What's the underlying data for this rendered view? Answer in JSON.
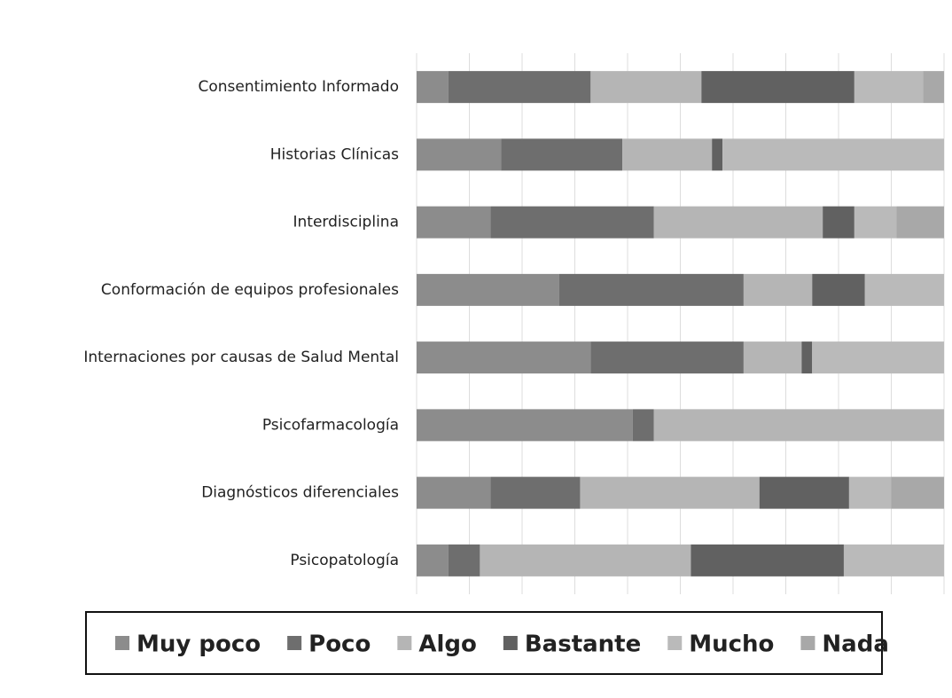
{
  "chart_data": {
    "type": "stacked_barh",
    "categories": [
      "Consentimiento Informado",
      "Historias Clínicas",
      "Interdisciplina",
      "Conformación de equipos profesionales",
      "Internaciones por causas de Salud Mental",
      "Psicofarmacología",
      "Diagnósticos diferenciales",
      "Psicopatología"
    ],
    "series": [
      {
        "name": "Muy poco",
        "color": "#8c8c8c",
        "values": [
          6,
          16,
          14,
          27,
          33,
          41,
          14,
          6
        ]
      },
      {
        "name": "Poco",
        "color": "#6e6e6e",
        "values": [
          27,
          23,
          31,
          35,
          29,
          4,
          17,
          6
        ]
      },
      {
        "name": "Algo",
        "color": "#b5b5b5",
        "values": [
          21,
          17,
          32,
          13,
          11,
          55,
          34,
          40
        ]
      },
      {
        "name": "Bastante",
        "color": "#616161",
        "values": [
          29,
          2,
          6,
          10,
          2,
          0,
          17,
          29
        ]
      },
      {
        "name": "Mucho",
        "color": "#bababa",
        "values": [
          13,
          42,
          8,
          15,
          25,
          0,
          8,
          19
        ]
      },
      {
        "name": "Nada",
        "color": "#a8a8a8",
        "values": [
          4,
          0,
          9,
          0,
          0,
          0,
          10,
          0
        ]
      }
    ],
    "xlim": [
      0,
      100
    ],
    "xticks": [
      0,
      10,
      20,
      30,
      40,
      50,
      60,
      70,
      80,
      90,
      100
    ],
    "grid": true,
    "legend": "bottom"
  }
}
